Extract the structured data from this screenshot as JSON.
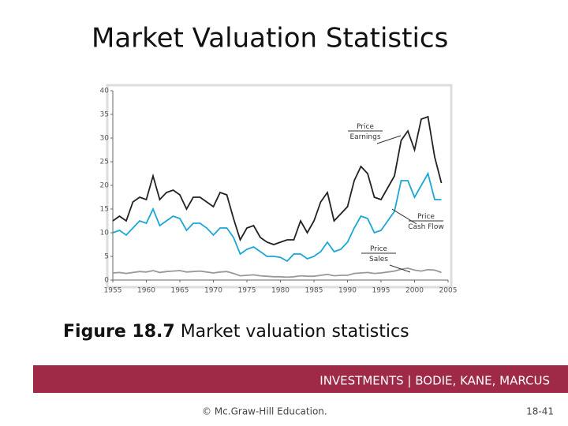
{
  "slide": {
    "title": "Market Valuation Statistics",
    "caption": {
      "label": "Figure 18.7",
      "text": "Market valuation statistics"
    },
    "banner": "INVESTMENTS | BODIE, KANE, MARCUS",
    "copyright": "© Mc.Graw-Hill Education.",
    "page": "18-41"
  },
  "chart_data": {
    "type": "line",
    "x": [
      1955,
      1956,
      1957,
      1958,
      1959,
      1960,
      1961,
      1962,
      1963,
      1964,
      1965,
      1966,
      1967,
      1968,
      1969,
      1970,
      1971,
      1972,
      1973,
      1974,
      1975,
      1976,
      1977,
      1978,
      1979,
      1980,
      1981,
      1982,
      1983,
      1984,
      1985,
      1986,
      1987,
      1988,
      1989,
      1990,
      1991,
      1992,
      1993,
      1994,
      1995,
      1996,
      1997,
      1998,
      1999,
      2000,
      2001,
      2002,
      2003,
      2004
    ],
    "series": [
      {
        "name": [
          "Price",
          "Earnings"
        ],
        "color": "#222222",
        "values": [
          12.5,
          13.5,
          12.5,
          16.5,
          17.5,
          17,
          22,
          17,
          18.5,
          19,
          18,
          15,
          17.5,
          17.5,
          16.5,
          15.5,
          18.5,
          18,
          13,
          8.5,
          11,
          11.5,
          9,
          8,
          7.5,
          8,
          8.5,
          8.5,
          12.5,
          10,
          12.5,
          16.5,
          18.5,
          12.5,
          14,
          15.5,
          21,
          24,
          22.5,
          17.5,
          17,
          19.5,
          22,
          29.5,
          31.5,
          27.5,
          34,
          34.5,
          26,
          20.5
        ]
      },
      {
        "name": [
          "Price",
          "Cash Flow"
        ],
        "color": "#1aa6d6",
        "values": [
          10,
          10.5,
          9.5,
          11,
          12.5,
          12,
          15,
          11.5,
          12.5,
          13.5,
          13,
          10.5,
          12,
          12,
          11,
          9.5,
          11,
          11,
          9,
          5.5,
          6.5,
          7,
          6,
          5,
          5,
          4.8,
          4,
          5.5,
          5.5,
          4.5,
          5,
          6,
          8,
          6,
          6.5,
          8,
          11,
          13.5,
          13,
          10,
          10.5,
          12.5,
          14.5,
          21,
          21,
          17.5,
          20,
          22.5,
          17,
          17
        ]
      },
      {
        "name": [
          "Price",
          "Sales"
        ],
        "color": "#999999",
        "values": [
          1.5,
          1.6,
          1.4,
          1.6,
          1.8,
          1.7,
          2.0,
          1.6,
          1.8,
          1.9,
          2.0,
          1.7,
          1.8,
          1.9,
          1.7,
          1.5,
          1.7,
          1.8,
          1.4,
          0.9,
          1.0,
          1.1,
          0.9,
          0.8,
          0.7,
          0.7,
          0.6,
          0.7,
          0.9,
          0.8,
          0.8,
          1.0,
          1.2,
          0.9,
          1.0,
          1.0,
          1.4,
          1.5,
          1.6,
          1.4,
          1.5,
          1.7,
          1.9,
          2.3,
          2.5,
          2.1,
          1.9,
          2.2,
          2.1,
          1.6
        ]
      }
    ],
    "xlim": [
      1955,
      2005
    ],
    "xticks": [
      1955,
      1960,
      1965,
      1970,
      1975,
      1980,
      1985,
      1990,
      1995,
      2000,
      2005
    ],
    "ylim": [
      0,
      40
    ],
    "yticks": [
      0,
      5,
      10,
      15,
      20,
      25,
      30,
      35,
      40
    ],
    "grid": false
  }
}
